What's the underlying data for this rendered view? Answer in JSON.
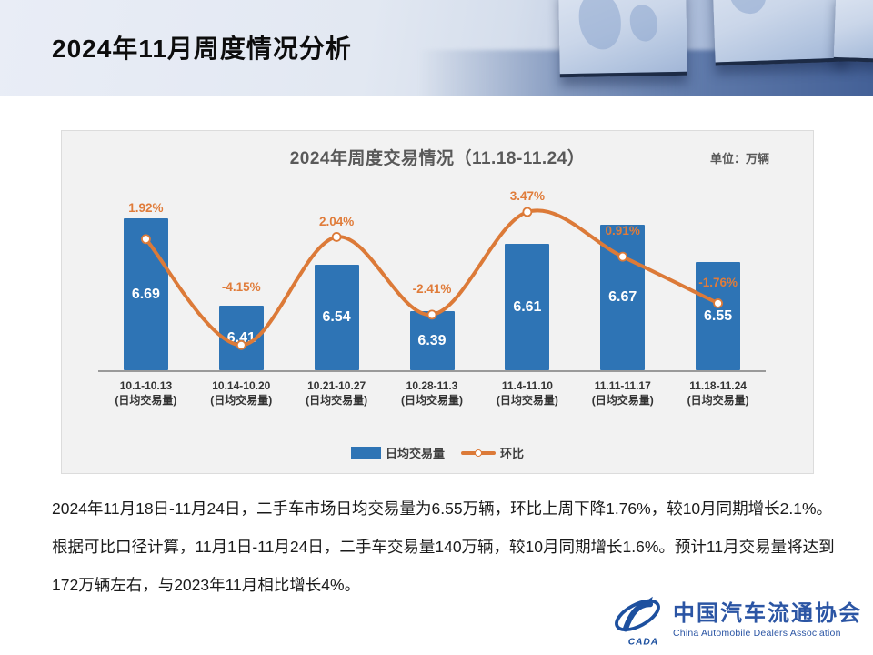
{
  "header": {
    "title": "2024年11月周度情况分析"
  },
  "chart": {
    "title": "2024年周度交易情况（11.18-11.24）",
    "unit_label": "单位：万辆",
    "legend": {
      "bar_label": "日均交易量",
      "line_label": "环比"
    }
  },
  "chart_data": {
    "type": "bar",
    "title": "2024年周度交易情况（11.18-11.24）",
    "unit": "万辆",
    "categories": [
      "10.1-10.13",
      "10.14-10.20",
      "10.21-10.27",
      "10.28-11.3",
      "11.4-11.10",
      "11.11-11.17",
      "11.18-11.24"
    ],
    "category_sublabel": "(日均交易量)",
    "series": [
      {
        "name": "日均交易量",
        "type": "bar",
        "color": "#2E74B5",
        "values": [
          6.69,
          6.41,
          6.54,
          6.39,
          6.61,
          6.67,
          6.55
        ]
      },
      {
        "name": "环比",
        "type": "line",
        "color": "#DC7A38",
        "values": [
          1.92,
          -4.15,
          2.04,
          -2.41,
          3.47,
          0.91,
          -1.76
        ],
        "labels": [
          "1.92%",
          "-4.15%",
          "2.04%",
          "-2.41%",
          "3.47%",
          "0.91%",
          "-1.76%"
        ]
      }
    ],
    "bar_axis_implied_min": 6.2,
    "grid": false,
    "legend_position": "bottom"
  },
  "body": {
    "lines": [
      "2024年11月18日-11月24日，二手车市场日均交易量为6.55万辆，环比上周下降1.76%，较10月同期增长2.1%。",
      "根据可比口径计算，11月1日-11月24日，二手车交易量140万辆，较10月同期增长1.6%。预计11月交易量将达到",
      "172万辆左右，与2023年11月相比增长4%。"
    ]
  },
  "footer": {
    "logo_abbr": "CADA",
    "org_name_cn": "中国汽车流通协会",
    "org_name_en": "China Automobile Dealers Association"
  }
}
